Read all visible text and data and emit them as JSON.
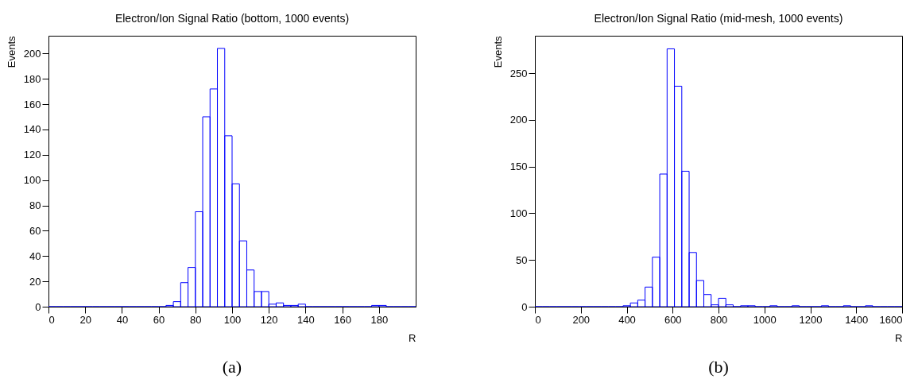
{
  "chart_data": [
    {
      "type": "histogram",
      "title": "Electron/Ion Signal Ratio (bottom, 1000 events)",
      "xlabel": "R",
      "ylabel": "Events",
      "color": "#0000ff",
      "bins": [
        0,
        4,
        8,
        12,
        16,
        20,
        24,
        28,
        32,
        36,
        40,
        44,
        48,
        52,
        56,
        60,
        64,
        68,
        72,
        76,
        80,
        84,
        88,
        92,
        96,
        100,
        104,
        108,
        112,
        116,
        120,
        124,
        128,
        132,
        136,
        140,
        144,
        148,
        152,
        156,
        160,
        164,
        168,
        172,
        176,
        180,
        184,
        188,
        192,
        196,
        200
      ],
      "values": [
        0,
        0,
        0,
        0,
        0,
        0,
        0,
        0,
        0,
        0,
        0,
        0,
        0,
        0,
        0,
        0,
        1,
        4,
        19,
        31,
        75,
        150,
        172,
        204,
        135,
        97,
        52,
        29,
        12,
        12,
        2,
        3,
        1,
        1,
        2,
        0,
        0,
        0,
        0,
        0,
        0,
        0,
        0,
        0,
        1,
        1,
        0,
        0,
        0,
        0
      ],
      "xlim": [
        0,
        200
      ],
      "xticks": [
        0,
        20,
        40,
        60,
        80,
        100,
        120,
        140,
        160,
        180
      ],
      "ylim": [
        0,
        214
      ],
      "yticks": [
        0,
        20,
        40,
        60,
        80,
        100,
        120,
        140,
        160,
        180,
        200
      ],
      "grid": false,
      "annotations": [
        "(a)"
      ]
    },
    {
      "type": "histogram",
      "title": "Electron/Ion Signal Ratio (mid-mesh, 1000 events)",
      "xlabel": "R",
      "ylabel": "Events",
      "color": "#0000ff",
      "bins": [
        0,
        32,
        64,
        96,
        128,
        160,
        192,
        224,
        256,
        288,
        320,
        352,
        384,
        416,
        448,
        480,
        512,
        544,
        576,
        608,
        640,
        672,
        704,
        736,
        768,
        800,
        832,
        864,
        896,
        928,
        960,
        992,
        1024,
        1056,
        1088,
        1120,
        1152,
        1184,
        1216,
        1248,
        1280,
        1312,
        1344,
        1376,
        1408,
        1440,
        1472,
        1504,
        1536,
        1568,
        1600
      ],
      "values": [
        0,
        0,
        0,
        0,
        0,
        0,
        0,
        0,
        0,
        0,
        0,
        0,
        1,
        4,
        7,
        21,
        53,
        142,
        276,
        236,
        145,
        58,
        28,
        13,
        2,
        9,
        2,
        0,
        1,
        1,
        0,
        0,
        1,
        0,
        0,
        1,
        0,
        0,
        0,
        1,
        0,
        0,
        1,
        0,
        0,
        1,
        0,
        0,
        0,
        0
      ],
      "xlim": [
        0,
        1600
      ],
      "xticks": [
        0,
        200,
        400,
        600,
        800,
        1000,
        1200,
        1400,
        1600
      ],
      "ylim": [
        0,
        290
      ],
      "yticks": [
        0,
        50,
        100,
        150,
        200,
        250
      ],
      "grid": false,
      "annotations": [
        "(b)"
      ]
    }
  ]
}
